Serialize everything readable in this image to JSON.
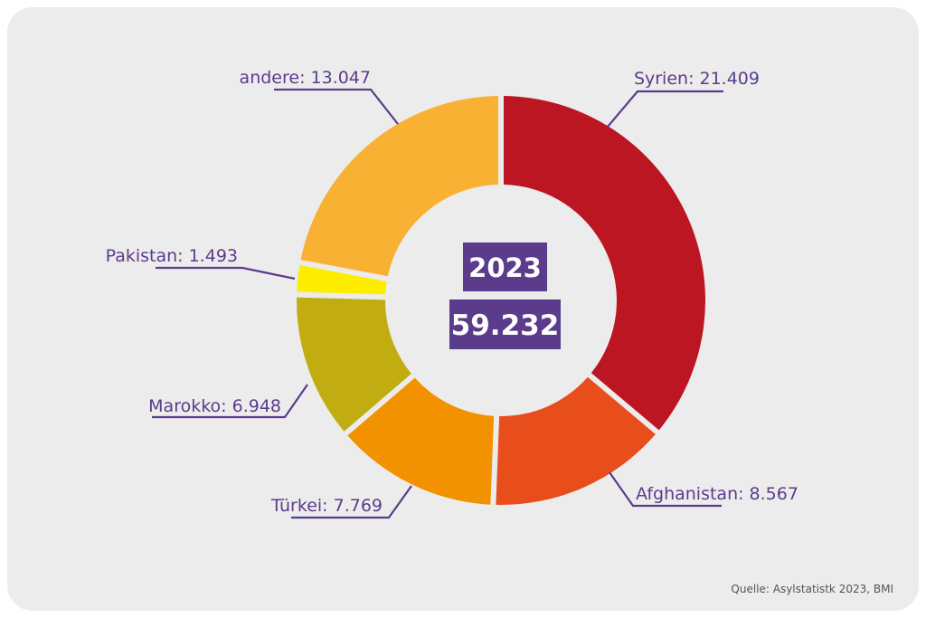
{
  "chart_data": {
    "type": "pie",
    "variant": "donut",
    "center": {
      "year": "2023",
      "total": "59.232"
    },
    "slices": [
      {
        "label": "Syrien: 21.409",
        "name": "Syrien",
        "value": 21409,
        "color": "#bb1622",
        "side": "right",
        "slug": "syrien"
      },
      {
        "label": "Afghanistan: 8.567",
        "name": "Afghanistan",
        "value": 8567,
        "color": "#e84e1b",
        "side": "right",
        "slug": "afghanistan"
      },
      {
        "label": "Türkei: 7.769",
        "name": "Türkei",
        "value": 7769,
        "color": "#f39200",
        "side": "left",
        "slug": "tuerkei"
      },
      {
        "label": "Marokko: 6.948",
        "name": "Marokko",
        "value": 6948,
        "color": "#c1ad12",
        "side": "left",
        "slug": "marokko"
      },
      {
        "label": "Pakistan: 1.493",
        "name": "Pakistan",
        "value": 1493,
        "color": "#ffed00",
        "side": "left",
        "slug": "pakistan"
      },
      {
        "label": "andere: 13.047",
        "name": "andere",
        "value": 13047,
        "color": "#f8b133",
        "side": "left",
        "slug": "andere"
      }
    ]
  },
  "colors": {
    "accent": "#5b3c8c",
    "card_background": "#ececec"
  },
  "source": "Quelle: Asylstatistk 2023, BMI"
}
